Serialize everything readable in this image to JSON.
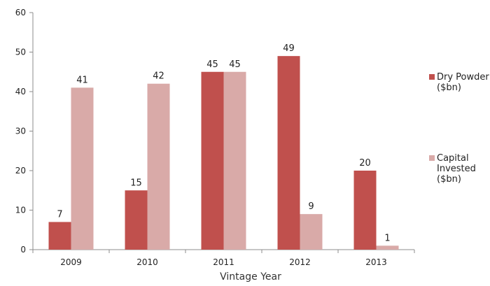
{
  "chart_data": {
    "type": "bar",
    "title": "",
    "xlabel": "Vintage Year",
    "ylabel": "",
    "categories": [
      "2009",
      "2010",
      "2011",
      "2012",
      "2013"
    ],
    "series": [
      {
        "name": "Dry Powder ($bn)",
        "color": "#c0504d",
        "values": [
          7,
          15,
          45,
          49,
          20
        ],
        "labels": [
          "7",
          "15",
          "45",
          "49",
          "20"
        ]
      },
      {
        "name": "Capital Invested ($bn)",
        "color": "#d9aaa8",
        "values": [
          41,
          42,
          45,
          9,
          1
        ],
        "labels": [
          "41",
          "42",
          "45",
          "9",
          "1"
        ]
      }
    ],
    "yticks": [
      "0",
      "10",
      "20",
      "30",
      "40",
      "50",
      "60"
    ],
    "ylim": [
      0,
      60
    ],
    "grid": false,
    "legend_position": "right",
    "legend": [
      {
        "lines": [
          "Dry Powder",
          "($bn)"
        ]
      },
      {
        "lines": [
          "Capital",
          "Invested",
          "($bn)"
        ]
      }
    ]
  }
}
